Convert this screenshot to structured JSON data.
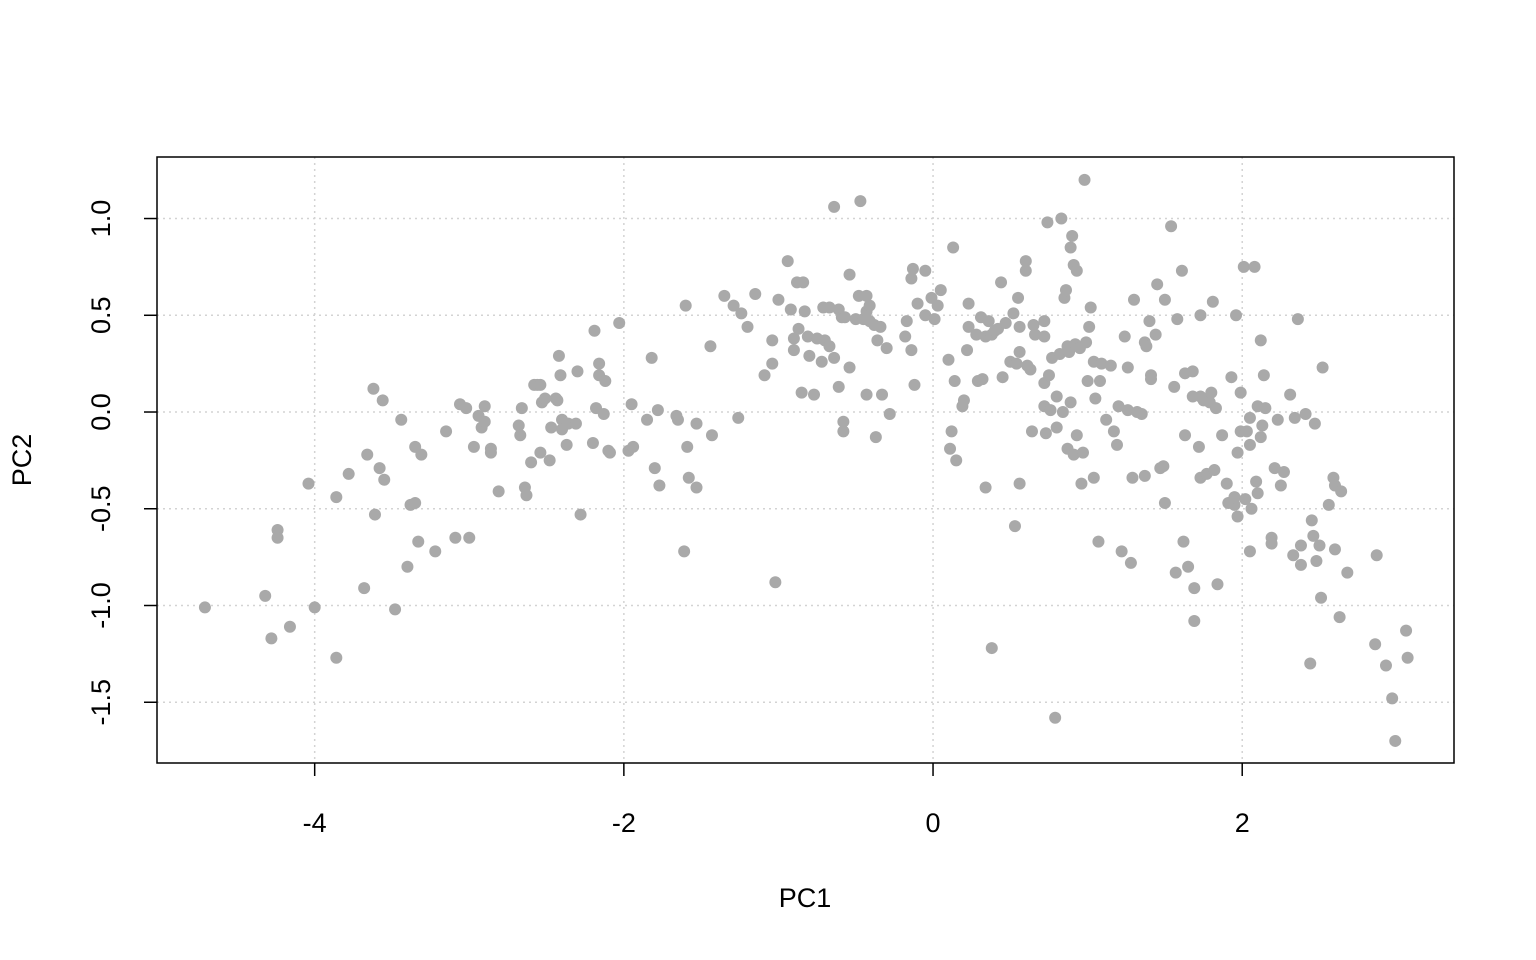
{
  "chart_data": {
    "type": "scatter",
    "x_label": "PC1",
    "y_label": "PC2",
    "xlim": [
      -5.02,
      3.37
    ],
    "ylim": [
      -1.814,
      1.318
    ],
    "xticks": [
      -4,
      -2,
      0,
      2
    ],
    "yticks": [
      {
        "value": -1.5,
        "label": "-1.5"
      },
      {
        "value": -1,
        "label": "-1.0"
      },
      -0.5,
      {
        "value": 0,
        "label": "0.0"
      },
      0.5,
      {
        "value": 1,
        "label": "1.0"
      }
    ],
    "grid": true,
    "color": "#a9a9a9",
    "x": [
      -4.71,
      -4.32,
      -4.28,
      -4.24,
      -4.24,
      -4.16,
      -4.04,
      -4.0,
      -3.86,
      -3.86,
      -3.78,
      -3.68,
      -3.66,
      -3.62,
      -3.61,
      -3.58,
      -3.56,
      -3.55,
      -3.48,
      -3.44,
      -3.4,
      -3.38,
      -3.35,
      -3.35,
      -3.33,
      -3.31,
      -3.22,
      -3.15,
      -3.09,
      -3.06,
      -3.02,
      -3.0,
      -2.97,
      -2.94,
      -2.92,
      -2.9,
      -2.9,
      -2.86,
      -2.86,
      -2.81,
      -2.68,
      -2.67,
      -2.66,
      -2.64,
      -2.63,
      -2.6,
      -2.58,
      -2.56,
      -2.54,
      -2.54,
      -2.53,
      -2.51,
      -2.48,
      -2.47,
      -2.44,
      -2.43,
      -2.42,
      -2.41,
      -2.4,
      -2.4,
      -2.37,
      -2.36,
      -2.31,
      -2.3,
      -2.28,
      -2.2,
      -2.19,
      -2.18,
      -2.16,
      -2.16,
      -2.13,
      -2.12,
      -2.1,
      -2.09,
      -2.03,
      -1.97,
      -1.95,
      -1.94,
      -1.85,
      -1.82,
      -1.8,
      -1.78,
      -1.77,
      -1.66,
      -1.65,
      -1.61,
      -1.6,
      -1.59,
      -1.58,
      -1.53,
      -1.53,
      -1.44,
      -1.43,
      -1.35,
      -1.29,
      -1.26,
      -1.24,
      -1.2,
      -1.15,
      -1.09,
      -1.04,
      -1.04,
      -1.02,
      -1.0,
      -0.94,
      -0.92,
      -0.9,
      -0.9,
      -0.88,
      -0.87,
      -0.85,
      -0.84,
      -0.83,
      -0.81,
      -0.8,
      -0.77,
      -0.75,
      -0.72,
      -0.71,
      -0.7,
      -0.67,
      -0.67,
      -0.64,
      -0.64,
      -0.61,
      -0.61,
      -0.59,
      -0.58,
      -0.58,
      -0.57,
      -0.54,
      -0.54,
      -0.5,
      -0.48,
      -0.47,
      -0.45,
      -0.43,
      -0.43,
      -0.43,
      -0.41,
      -0.41,
      -0.38,
      -0.37,
      -0.36,
      -0.34,
      -0.33,
      -0.3,
      -0.28,
      -0.18,
      -0.17,
      -0.14,
      -0.14,
      -0.13,
      -0.12,
      -0.1,
      -0.05,
      -0.05,
      -0.01,
      0.01,
      0.03,
      0.05,
      0.1,
      0.11,
      0.12,
      0.13,
      0.14,
      0.15,
      0.19,
      0.2,
      0.22,
      0.23,
      0.23,
      0.28,
      0.29,
      0.31,
      0.32,
      0.34,
      0.34,
      0.36,
      0.38,
      0.38,
      0.4,
      0.42,
      0.44,
      0.45,
      0.47,
      0.5,
      0.52,
      0.53,
      0.54,
      0.55,
      0.56,
      0.56,
      0.56,
      0.6,
      0.6,
      0.61,
      0.63,
      0.64,
      0.65,
      0.66,
      0.72,
      0.72,
      0.72,
      0.72,
      0.73,
      0.74,
      0.75,
      0.76,
      0.77,
      0.79,
      0.8,
      0.8,
      0.82,
      0.83,
      0.84,
      0.85,
      0.86,
      0.87,
      0.87,
      0.88,
      0.89,
      0.89,
      0.9,
      0.91,
      0.91,
      0.92,
      0.93,
      0.93,
      0.95,
      0.96,
      0.97,
      0.98,
      0.99,
      1.0,
      1.01,
      1.02,
      1.04,
      1.04,
      1.05,
      1.07,
      1.08,
      1.09,
      1.12,
      1.15,
      1.17,
      1.19,
      1.2,
      1.22,
      1.24,
      1.26,
      1.26,
      1.28,
      1.29,
      1.3,
      1.32,
      1.35,
      1.37,
      1.37,
      1.38,
      1.4,
      1.41,
      1.41,
      1.44,
      1.45,
      1.47,
      1.49,
      1.5,
      1.5,
      1.54,
      1.56,
      1.57,
      1.58,
      1.61,
      1.62,
      1.63,
      1.63,
      1.65,
      1.68,
      1.68,
      1.69,
      1.69,
      1.72,
      1.73,
      1.73,
      1.73,
      1.75,
      1.77,
      1.79,
      1.8,
      1.81,
      1.82,
      1.83,
      1.84,
      1.87,
      1.9,
      1.91,
      1.93,
      1.95,
      1.95,
      1.96,
      1.97,
      1.97,
      1.99,
      1.99,
      2.01,
      2.02,
      2.03,
      2.05,
      2.05,
      2.05,
      2.06,
      2.08,
      2.09,
      2.1,
      2.1,
      2.12,
      2.12,
      2.13,
      2.14,
      2.15,
      2.19,
      2.19,
      2.21,
      2.23,
      2.25,
      2.27,
      2.31,
      2.33,
      2.34,
      2.36,
      2.38,
      2.38,
      2.41,
      2.44,
      2.45,
      2.46,
      2.47,
      2.48,
      2.5,
      2.51,
      2.52,
      2.56,
      2.59,
      2.6,
      2.6,
      2.63,
      2.64,
      2.68,
      2.86,
      2.87,
      2.93,
      2.97,
      2.99,
      3.06,
      3.07
    ],
    "y": [
      -1.01,
      -0.95,
      -1.17,
      -0.61,
      -0.65,
      -1.11,
      -0.37,
      -1.01,
      -0.44,
      -1.27,
      -0.32,
      -0.91,
      -0.22,
      0.12,
      -0.53,
      -0.29,
      0.06,
      -0.35,
      -1.02,
      -0.04,
      -0.8,
      -0.48,
      -0.18,
      -0.47,
      -0.67,
      -0.22,
      -0.72,
      -0.1,
      -0.65,
      0.04,
      0.02,
      -0.65,
      -0.18,
      -0.02,
      -0.08,
      0.03,
      -0.05,
      -0.19,
      -0.21,
      -0.41,
      -0.07,
      -0.12,
      0.02,
      -0.39,
      -0.43,
      -0.26,
      0.14,
      0.14,
      -0.21,
      0.14,
      0.05,
      0.07,
      -0.25,
      -0.08,
      0.07,
      0.06,
      0.29,
      0.19,
      -0.04,
      -0.09,
      -0.17,
      -0.06,
      -0.06,
      0.21,
      -0.53,
      -0.16,
      0.42,
      0.02,
      0.25,
      0.19,
      -0.01,
      0.16,
      -0.2,
      -0.21,
      0.46,
      -0.2,
      0.04,
      -0.18,
      -0.04,
      0.28,
      -0.29,
      0.01,
      -0.38,
      -0.02,
      -0.04,
      -0.72,
      0.55,
      -0.18,
      -0.34,
      -0.06,
      -0.39,
      0.34,
      -0.12,
      0.6,
      0.55,
      -0.03,
      0.51,
      0.44,
      0.61,
      0.19,
      0.25,
      0.37,
      -0.88,
      0.58,
      0.78,
      0.53,
      0.38,
      0.32,
      0.67,
      0.43,
      0.1,
      0.67,
      0.52,
      0.39,
      0.29,
      0.09,
      0.38,
      0.26,
      0.54,
      0.37,
      0.34,
      0.54,
      1.06,
      0.28,
      0.13,
      0.53,
      0.49,
      -0.05,
      -0.1,
      0.49,
      0.23,
      0.71,
      0.48,
      0.6,
      1.09,
      0.48,
      0.52,
      0.09,
      0.6,
      0.47,
      0.55,
      0.45,
      -0.13,
      0.37,
      0.44,
      0.09,
      0.33,
      -0.01,
      0.39,
      0.47,
      0.32,
      0.69,
      0.74,
      0.14,
      0.56,
      0.73,
      0.5,
      0.59,
      0.48,
      0.55,
      0.63,
      0.27,
      -0.19,
      -0.1,
      0.85,
      0.16,
      -0.25,
      0.03,
      0.06,
      0.32,
      0.56,
      0.44,
      0.4,
      0.16,
      0.49,
      0.17,
      0.39,
      -0.39,
      0.47,
      0.4,
      -1.22,
      0.42,
      0.43,
      0.67,
      0.18,
      0.46,
      0.26,
      0.51,
      -0.59,
      0.25,
      0.59,
      0.44,
      -0.37,
      0.31,
      0.78,
      0.73,
      0.24,
      0.22,
      -0.1,
      0.45,
      0.4,
      0.39,
      0.15,
      0.47,
      0.03,
      -0.11,
      0.98,
      0.19,
      0.01,
      0.28,
      -1.58,
      0.08,
      -0.08,
      0.3,
      1.0,
      0.0,
      0.59,
      0.63,
      -0.19,
      0.34,
      0.31,
      0.05,
      0.85,
      0.91,
      0.76,
      -0.22,
      0.35,
      -0.12,
      0.73,
      0.33,
      -0.37,
      -0.21,
      1.2,
      0.36,
      0.16,
      0.44,
      0.54,
      0.26,
      -0.34,
      0.07,
      -0.67,
      0.16,
      0.25,
      -0.04,
      0.24,
      -0.1,
      -0.17,
      0.03,
      -0.72,
      0.39,
      0.23,
      0.01,
      -0.78,
      -0.34,
      0.58,
      0.0,
      -0.01,
      -0.33,
      0.36,
      0.34,
      0.47,
      0.19,
      0.17,
      0.4,
      0.66,
      -0.29,
      -0.28,
      -0.47,
      0.58,
      0.96,
      0.13,
      -0.83,
      0.48,
      0.73,
      -0.67,
      -0.12,
      0.2,
      -0.8,
      0.21,
      0.08,
      -0.91,
      -1.08,
      -0.18,
      0.5,
      -0.34,
      0.08,
      0.06,
      -0.32,
      0.05,
      0.1,
      0.57,
      -0.3,
      0.02,
      -0.89,
      -0.12,
      -0.37,
      -0.47,
      0.18,
      -0.48,
      -0.44,
      0.5,
      -0.21,
      -0.54,
      0.1,
      -0.1,
      0.75,
      -0.45,
      -0.1,
      -0.03,
      -0.72,
      -0.17,
      -0.5,
      0.75,
      -0.36,
      0.03,
      -0.42,
      -0.13,
      0.37,
      -0.07,
      0.19,
      0.02,
      -0.65,
      -0.68,
      -0.29,
      -0.04,
      -0.38,
      -0.31,
      0.09,
      -0.74,
      -0.03,
      0.48,
      -0.69,
      -0.79,
      -0.01,
      -1.3,
      -0.56,
      -0.64,
      -0.06,
      -0.77,
      -0.69,
      -0.96,
      0.23,
      -0.48,
      -0.34,
      -0.71,
      -0.38,
      -1.06,
      -0.41,
      -0.83,
      -1.2,
      -0.74,
      -1.31,
      -1.48,
      -1.7,
      -1.13,
      -1.27
    ]
  }
}
